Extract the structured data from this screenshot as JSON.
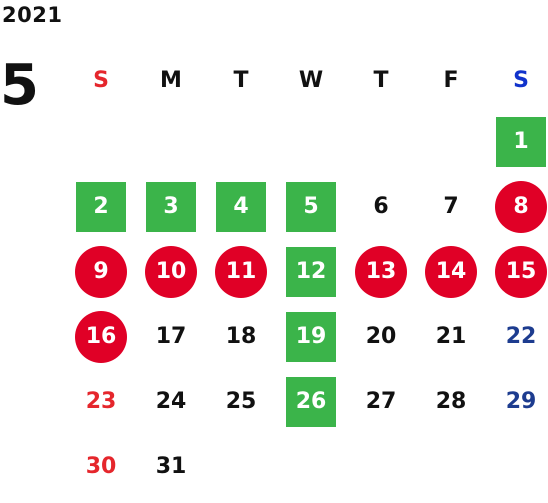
{
  "header": {
    "year": "2021",
    "month": "5"
  },
  "colors": {
    "text": "#111111",
    "sunday": "#e5262c",
    "saturday": "#1d3c8f",
    "saturday_header": "#1133cc",
    "holiday_green": "#3bb44a",
    "holiday_red": "#e00026"
  },
  "weekdays": [
    {
      "label": "S",
      "color": "#e5262c"
    },
    {
      "label": "M",
      "color": "#111111"
    },
    {
      "label": "T",
      "color": "#111111"
    },
    {
      "label": "W",
      "color": "#111111"
    },
    {
      "label": "T",
      "color": "#111111"
    },
    {
      "label": "F",
      "color": "#111111"
    },
    {
      "label": "S",
      "color": "#1133cc"
    }
  ],
  "start_weekday": 6,
  "days": [
    {
      "day": "1",
      "style": "green-square"
    },
    {
      "day": "2",
      "style": "green-square"
    },
    {
      "day": "3",
      "style": "green-square"
    },
    {
      "day": "4",
      "style": "green-square"
    },
    {
      "day": "5",
      "style": "green-square"
    },
    {
      "day": "6",
      "style": "plain"
    },
    {
      "day": "7",
      "style": "plain"
    },
    {
      "day": "8",
      "style": "red-circle"
    },
    {
      "day": "9",
      "style": "red-circle"
    },
    {
      "day": "10",
      "style": "red-circle"
    },
    {
      "day": "11",
      "style": "red-circle"
    },
    {
      "day": "12",
      "style": "green-square"
    },
    {
      "day": "13",
      "style": "red-circle"
    },
    {
      "day": "14",
      "style": "red-circle"
    },
    {
      "day": "15",
      "style": "red-circle"
    },
    {
      "day": "16",
      "style": "red-circle"
    },
    {
      "day": "17",
      "style": "plain"
    },
    {
      "day": "18",
      "style": "plain"
    },
    {
      "day": "19",
      "style": "green-square"
    },
    {
      "day": "20",
      "style": "plain"
    },
    {
      "day": "21",
      "style": "plain"
    },
    {
      "day": "22",
      "style": "plain"
    },
    {
      "day": "23",
      "style": "plain"
    },
    {
      "day": "24",
      "style": "plain"
    },
    {
      "day": "25",
      "style": "plain"
    },
    {
      "day": "26",
      "style": "green-square"
    },
    {
      "day": "27",
      "style": "plain"
    },
    {
      "day": "28",
      "style": "plain"
    },
    {
      "day": "29",
      "style": "plain"
    },
    {
      "day": "30",
      "style": "plain"
    },
    {
      "day": "31",
      "style": "plain"
    }
  ]
}
